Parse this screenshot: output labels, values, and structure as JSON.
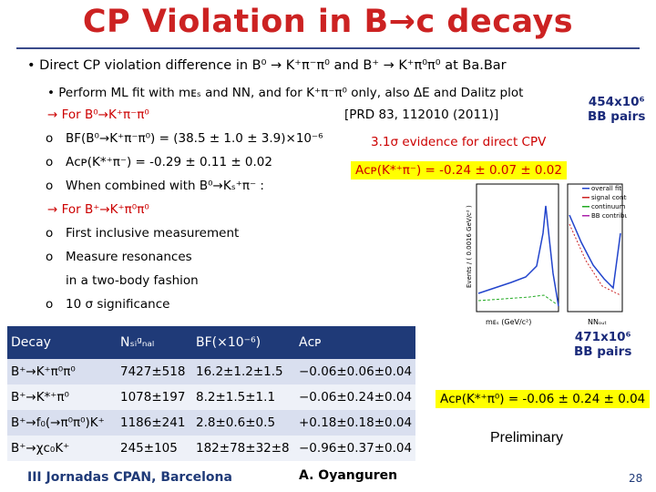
{
  "title": "CP Violation in B→c decays",
  "lines": {
    "l1": "• Direct CP violation difference in  B⁰ → K⁺π⁻π⁰ and B⁺ → K⁺π⁰π⁰ at Ba.Bar",
    "l2": "• Perform ML fit with mᴇₛ and NN, and for K⁺π⁻π⁰ only, also ΔE and Dalitz plot",
    "l3a": "→  For B⁰→K⁺π⁻π⁰",
    "l3b": "[PRD 83, 112010 (2011)]",
    "l4a": "BF(B⁰→K⁺π⁻π⁰) = (38.5 ± 1.0 ± 3.9)×10⁻⁶",
    "l4b": "3.1σ evidence for direct CPV",
    "l5": "Aᴄᴘ(K*⁺π⁻) = -0.29  ± 0.11 ± 0.02",
    "l5b": "Aᴄᴘ(K*⁺π⁻) = -0.24 ± 0.07 ± 0.02",
    "l6": "When combined with B⁰→Kₛ⁺π⁻ :",
    "l7": "→  For B⁺→K⁺π⁰π⁰",
    "l8": "First inclusive measurement",
    "l9a": "Measure resonances",
    "l9b": "in a two-body fashion",
    "l10": "10 σ significance",
    "bullet": "o",
    "pairs1a": "454x10⁶",
    "pairs1b": "BB pairs",
    "pairs2a": "471x10⁶",
    "pairs2b": "BB pairs",
    "acp2": "Aᴄᴘ(K*⁺π⁰) = -0.06 ± 0.24 ± 0.04",
    "preliminary": "Preliminary"
  },
  "table": {
    "headers": [
      "Decay",
      "Nₛᵢᵍₙₐₗ",
      "BF(×10⁻⁶)",
      "Aᴄᴘ"
    ],
    "rows": [
      [
        "B⁺→K⁺π⁰π⁰",
        "7427±518",
        "16.2±1.2±1.5",
        "−0.06±0.06±0.04"
      ],
      [
        "B⁺→K*⁺π⁰",
        "1078±197",
        "8.2±1.5±1.1",
        "−0.06±0.24±0.04"
      ],
      [
        "B⁺→f₀(→π⁰π⁰)K⁺",
        "1186±241",
        "2.8±0.6±0.5",
        "+0.18±0.18±0.04"
      ],
      [
        "B⁺→χc₀K⁺",
        "245±105",
        "182±78±32±8",
        "−0.96±0.37±0.04"
      ]
    ]
  },
  "plot": {
    "xlabel": "mᴇₛ (GeV/c²)",
    "xlabel2": "NNₒᵤₜ",
    "ylabel": "Events / ( 0.0016 GeV/c² )",
    "legend": [
      "overall fit",
      "signal contribution",
      "continuum",
      "BB contribution"
    ]
  },
  "footer": {
    "left": "III Jornadas CPAN, Barcelona",
    "center": "A. Oyanguren",
    "page": "28"
  },
  "colors": {
    "title": "#cc2222",
    "accent": "#1f3a78",
    "highlight": "#ffff00"
  }
}
